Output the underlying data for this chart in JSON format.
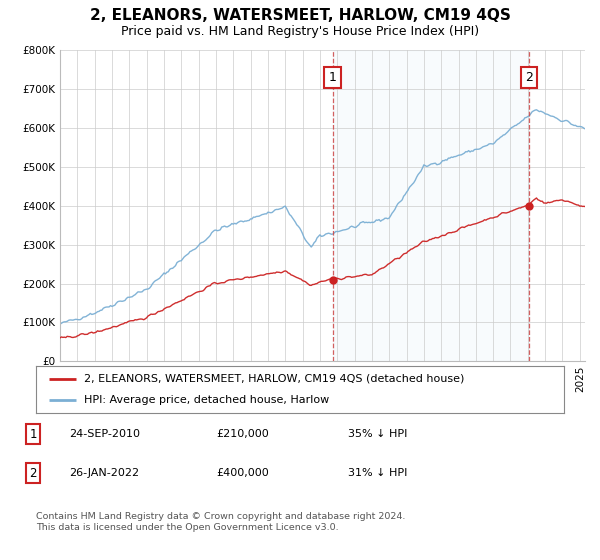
{
  "title": "2, ELEANORS, WATERSMEET, HARLOW, CM19 4QS",
  "subtitle": "Price paid vs. HM Land Registry's House Price Index (HPI)",
  "ylim": [
    0,
    800000
  ],
  "yticks": [
    0,
    100000,
    200000,
    300000,
    400000,
    500000,
    600000,
    700000,
    800000
  ],
  "ytick_labels": [
    "£0",
    "£100K",
    "£200K",
    "£300K",
    "£400K",
    "£500K",
    "£600K",
    "£700K",
    "£800K"
  ],
  "x_start_year": 1995,
  "x_end_year": 2025,
  "hpi_color": "#7bafd4",
  "price_color": "#cc2222",
  "transaction1_date": 2010.73,
  "transaction1_price": 210000,
  "transaction1_label": "1",
  "transaction2_date": 2022.07,
  "transaction2_price": 400000,
  "transaction2_label": "2",
  "shade_color": "#ddeeff",
  "vline_color": "#cc4444",
  "legend_property": "2, ELEANORS, WATERSMEET, HARLOW, CM19 4QS (detached house)",
  "legend_hpi": "HPI: Average price, detached house, Harlow",
  "table_row1": [
    "1",
    "24-SEP-2010",
    "£210,000",
    "35% ↓ HPI"
  ],
  "table_row2": [
    "2",
    "26-JAN-2022",
    "£400,000",
    "31% ↓ HPI"
  ],
  "footer": "Contains HM Land Registry data © Crown copyright and database right 2024.\nThis data is licensed under the Open Government Licence v3.0.",
  "background_color": "#ffffff",
  "grid_color": "#cccccc",
  "title_fontsize": 11,
  "subtitle_fontsize": 9,
  "tick_fontsize": 7.5
}
